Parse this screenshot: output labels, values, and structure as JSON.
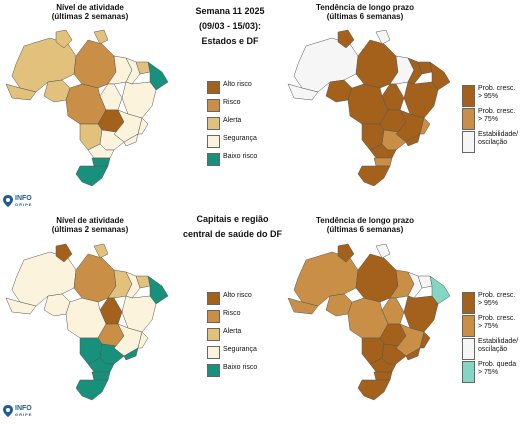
{
  "header": {
    "week": "Semana 11 2025",
    "dates": "(09/03 - 15/03):",
    "scope_top": "Estados e DF",
    "scope_bottom_1": "Capitais e região",
    "scope_bottom_2": "central de saúde do DF"
  },
  "panels": {
    "activity_title_1": "Nível de atividade",
    "activity_title_2": "(últimas 2 semanas)",
    "trend_title_1": "Tendência de longo prazo",
    "trend_title_2": "(últimas 6 semanas)"
  },
  "activity_legend": [
    {
      "label": "Alto risco",
      "color": "#a3611c"
    },
    {
      "label": "Risco",
      "color": "#c98f46"
    },
    {
      "label": "Alerta",
      "color": "#e2c17c"
    },
    {
      "label": "Segurança",
      "color": "#fbf3dc"
    },
    {
      "label": "Baixo risco",
      "color": "#17917c"
    }
  ],
  "trend_legend_top": [
    {
      "label1": "Prob. cresc.",
      "label2": "> 95%",
      "color": "#a3611c"
    },
    {
      "label1": "Prob. cresc.",
      "label2": "> 75%",
      "color": "#c98f46"
    },
    {
      "label1": "Estabilidade/",
      "label2": "oscilação",
      "color": "#f6f6f6"
    }
  ],
  "trend_legend_bottom": [
    {
      "label1": "Prob. cresc.",
      "label2": "> 95%",
      "color": "#a3611c"
    },
    {
      "label1": "Prob. cresc.",
      "label2": "> 75%",
      "color": "#c98f46"
    },
    {
      "label1": "Estabilidade/",
      "label2": "oscilação",
      "color": "#f6f6f6"
    },
    {
      "label1": "Prob. queda",
      "label2": "> 75%",
      "color": "#83d6c3"
    }
  ],
  "logo": {
    "name": "INFO",
    "sub": "GRIPE"
  }
}
